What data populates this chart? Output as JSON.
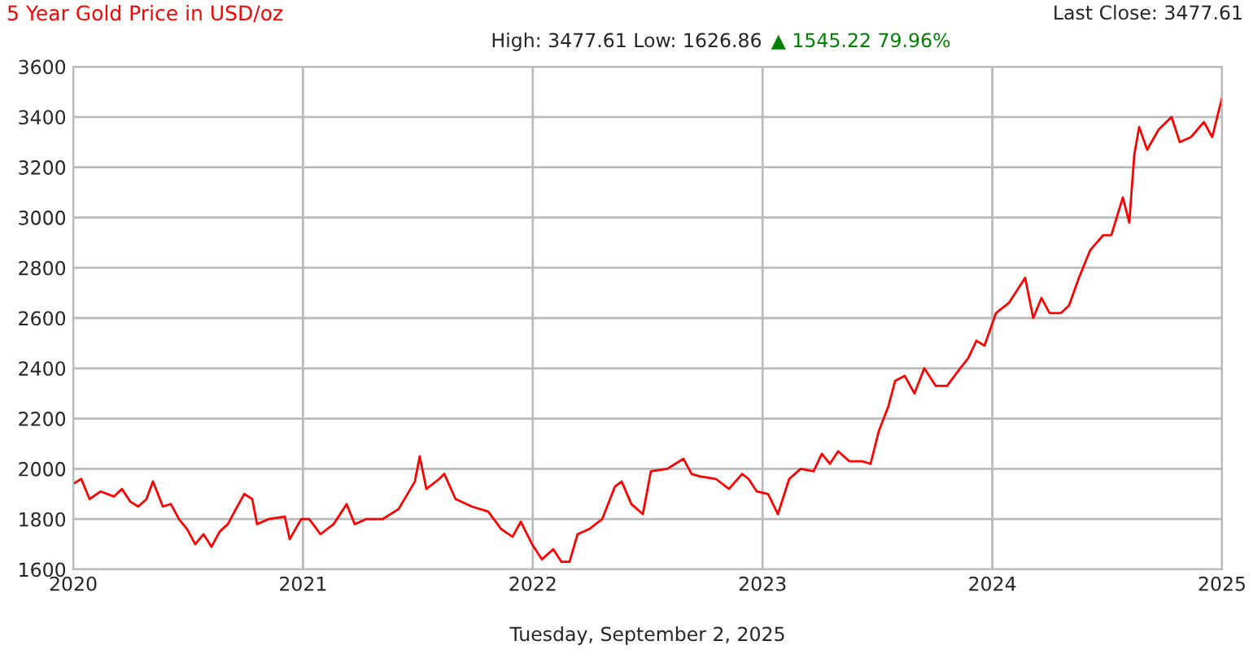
{
  "chart_data": {
    "type": "line",
    "title": "5 Year Gold Price in USD/oz",
    "subtitle": "High: 3477.61 Low: 1626.86",
    "annotations": [
      "▲ 1545.22 79.96%",
      "Last Close: 3477.61"
    ],
    "xlabel": "Tuesday, September 2, 2025",
    "x": [
      2020.0,
      2020.035,
      2020.071,
      2020.12,
      2020.177,
      2020.212,
      2020.248,
      2020.283,
      2020.319,
      2020.347,
      2020.39,
      2020.425,
      2020.46,
      2020.496,
      2020.531,
      2020.567,
      2020.602,
      2020.637,
      2020.673,
      2020.708,
      2020.744,
      2020.779,
      2020.8,
      2020.85,
      2020.921,
      2020.942,
      2020.992,
      2021.027,
      2021.076,
      2021.133,
      2021.19,
      2021.225,
      2021.275,
      2021.346,
      2021.416,
      2021.487,
      2021.508,
      2021.537,
      2021.593,
      2021.615,
      2021.664,
      2021.735,
      2021.806,
      2021.863,
      2021.912,
      2021.948,
      2021.997,
      2022.04,
      2022.089,
      2022.125,
      2022.16,
      2022.195,
      2022.245,
      2022.302,
      2022.358,
      2022.387,
      2022.429,
      2022.479,
      2022.514,
      2022.585,
      2022.656,
      2022.691,
      2022.727,
      2022.797,
      2022.854,
      2022.911,
      2022.939,
      2022.975,
      2023.024,
      2023.067,
      2023.116,
      2023.166,
      2023.222,
      2023.258,
      2023.293,
      2023.329,
      2023.378,
      2023.435,
      2023.47,
      2023.506,
      2023.548,
      2023.577,
      2023.619,
      2023.661,
      2023.704,
      2023.754,
      2023.803,
      2023.86,
      2023.895,
      2023.931,
      2023.966,
      2024.016,
      2024.072,
      2024.143,
      2024.178,
      2024.214,
      2024.249,
      2024.299,
      2024.334,
      2024.377,
      2024.426,
      2024.483,
      2024.518,
      2024.568,
      2024.596,
      2024.618,
      2024.639,
      2024.674,
      2024.724,
      2024.78,
      2024.816,
      2024.865,
      2024.921,
      2024.957,
      2025.0
    ],
    "series": [
      {
        "color": "#ff0000",
        "values": [
          1940,
          1960,
          1880,
          1910,
          1890,
          1920,
          1870,
          1850,
          1880,
          1950,
          1850,
          1860,
          1800,
          1760,
          1700,
          1740,
          1690,
          1750,
          1780,
          1840,
          1900,
          1880,
          1780,
          1800,
          1810,
          1720,
          1800,
          1800,
          1740,
          1780,
          1860,
          1780,
          1800,
          1800,
          1840,
          1950,
          2050,
          1920,
          1960,
          1980,
          1880,
          1850,
          1830,
          1760,
          1730,
          1790,
          1700,
          1640,
          1680,
          1630,
          1630,
          1740,
          1760,
          1800,
          1930,
          1950,
          1860,
          1820,
          1990,
          2000,
          2040,
          1980,
          1970,
          1960,
          1920,
          1980,
          1960,
          1910,
          1900,
          1820,
          1960,
          2000,
          1990,
          2060,
          2020,
          2070,
          2030,
          2030,
          2020,
          2150,
          2250,
          2350,
          2370,
          2300,
          2400,
          2330,
          2330,
          2400,
          2440,
          2510,
          2490,
          2620,
          2660,
          2760,
          2600,
          2680,
          2620,
          2620,
          2650,
          2760,
          2870,
          2930,
          2930,
          3080,
          2980,
          3250,
          3360,
          3270,
          3350,
          3400,
          3300,
          3320,
          3380,
          3320,
          3477.61
        ]
      }
    ],
    "xlim": [
      2020,
      2025
    ],
    "xticks": [
      2020,
      2021,
      2022,
      2023,
      2024,
      2025
    ],
    "ylim": [
      1600,
      3600
    ],
    "yticks": [
      1600,
      1800,
      2000,
      2200,
      2400,
      2600,
      2800,
      3000,
      3200,
      3400,
      3600
    ],
    "grid": true
  }
}
